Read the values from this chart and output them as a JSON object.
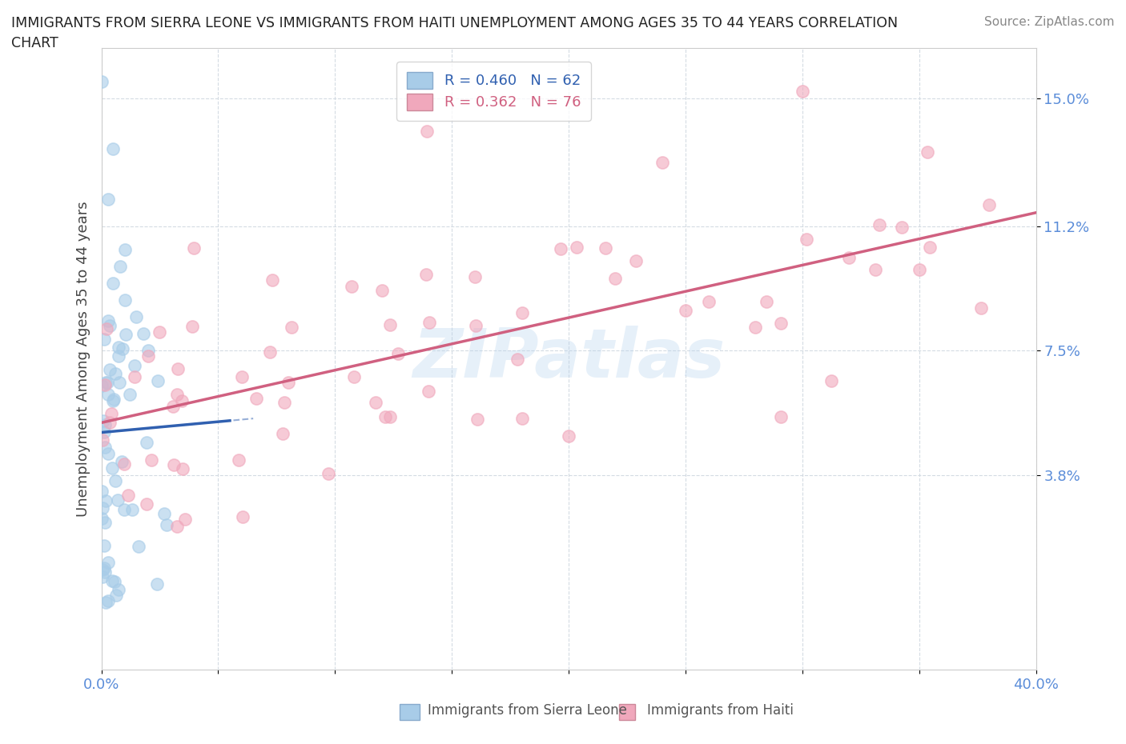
{
  "title_line1": "IMMIGRANTS FROM SIERRA LEONE VS IMMIGRANTS FROM HAITI UNEMPLOYMENT AMONG AGES 35 TO 44 YEARS CORRELATION",
  "title_line2": "CHART",
  "source_text": "Source: ZipAtlas.com",
  "ylabel": "Unemployment Among Ages 35 to 44 years",
  "sl_R": 0.46,
  "sl_N": 62,
  "haiti_R": 0.362,
  "haiti_N": 76,
  "xlim": [
    0.0,
    0.4
  ],
  "ylim": [
    -0.02,
    0.165
  ],
  "xtick_positions": [
    0.0,
    0.05,
    0.1,
    0.15,
    0.2,
    0.25,
    0.3,
    0.35,
    0.4
  ],
  "xticklabels": [
    "0.0%",
    "",
    "",
    "",
    "",
    "",
    "",
    "",
    "40.0%"
  ],
  "ytick_positions": [
    0.038,
    0.075,
    0.112,
    0.15
  ],
  "ytick_labels": [
    "3.8%",
    "7.5%",
    "11.2%",
    "15.0%"
  ],
  "ytick_color": "#5b8dd9",
  "xtick_color": "#5b8dd9",
  "scatter_sl_color": "#a8cce8",
  "scatter_haiti_color": "#f0a8bc",
  "trend_sl_color": "#3060b0",
  "trend_haiti_color": "#d06080",
  "background_color": "#ffffff",
  "grid_color": "#d0d8e0",
  "legend_sl_label": "R = 0.460   N = 62",
  "legend_haiti_label": "R = 0.362   N = 76",
  "bottom_legend_sl": "Immigrants from Sierra Leone",
  "bottom_legend_haiti": "Immigrants from Haiti",
  "watermark_text": "ZIPatlas"
}
